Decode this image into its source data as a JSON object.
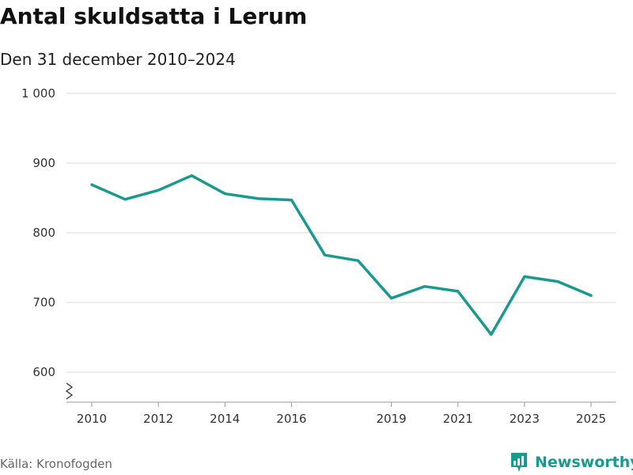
{
  "title": "Antal skuldsatta i Lerum",
  "subtitle": "Den 31 december 2010–2024",
  "source": "Källa: Kronofogden",
  "brand": {
    "name": "Newsworthy",
    "icon": "newsworthy-logo-icon",
    "color": "#1a9a8e"
  },
  "chart_data": {
    "type": "line",
    "title": "Antal skuldsatta i Lerum",
    "subtitle": "Den 31 december 2010–2024",
    "xlabel": "",
    "ylabel": "",
    "ylim": [
      600,
      1000
    ],
    "xlim": [
      2010,
      2025
    ],
    "yticks": [
      600,
      700,
      800,
      900,
      1000
    ],
    "ytick_labels": [
      "600",
      "700",
      "800",
      "900",
      "1 000"
    ],
    "xticks": [
      2010,
      2012,
      2014,
      2016,
      2019,
      2021,
      2023,
      2025
    ],
    "axis_break": true,
    "grid": true,
    "legend": "none",
    "line_color": "#1a9a8e",
    "series": [
      {
        "x": [
          2010,
          2011,
          2012,
          2013,
          2014,
          2015,
          2016,
          2017,
          2018,
          2019,
          2020,
          2021,
          2022,
          2023,
          2024,
          2025
        ],
        "values": [
          869,
          848,
          861,
          882,
          856,
          849,
          847,
          768,
          760,
          706,
          723,
          716,
          654,
          737,
          730,
          710
        ]
      }
    ]
  }
}
